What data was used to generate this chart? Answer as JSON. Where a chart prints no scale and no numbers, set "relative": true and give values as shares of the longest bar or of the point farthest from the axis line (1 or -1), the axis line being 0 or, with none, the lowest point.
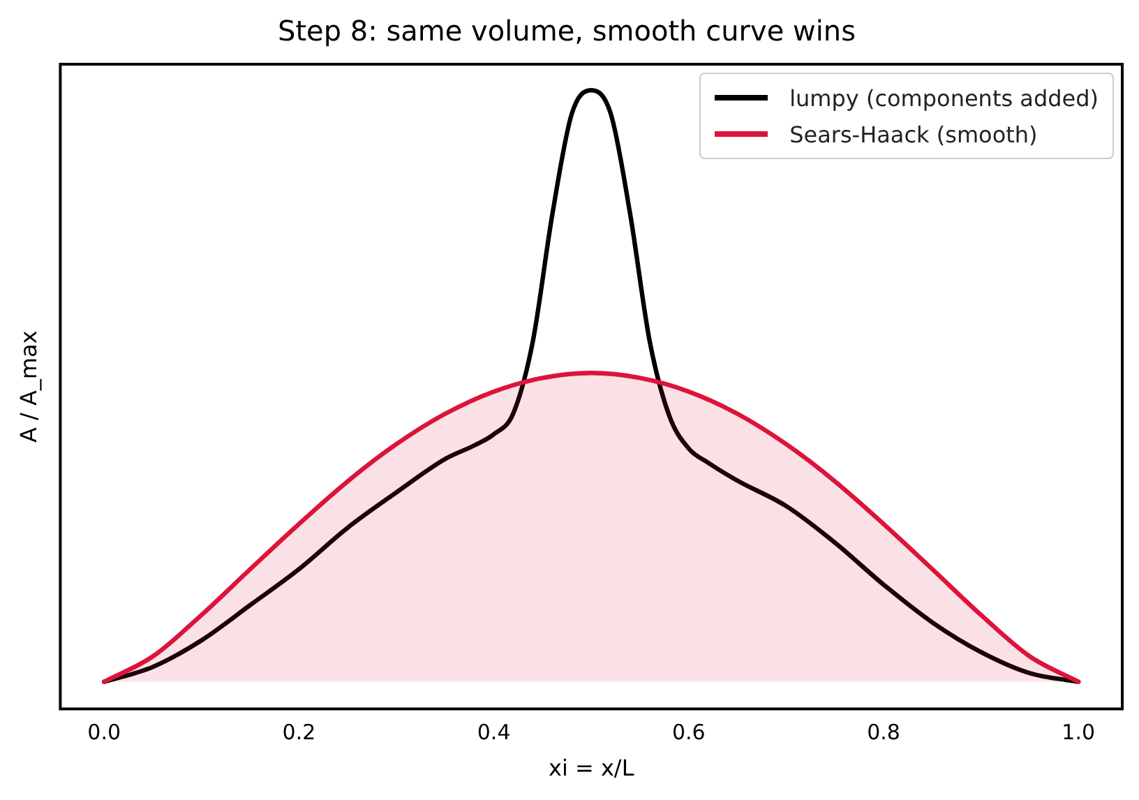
{
  "chart_data": {
    "type": "line",
    "title": "Step 8: same volume, smooth curve wins",
    "xlabel": "xi = x/L",
    "ylabel": "A / A_max",
    "relative": true,
    "xlim": [
      -0.045,
      1.045
    ],
    "xticks": [
      {
        "value": 0,
        "label": "0.0"
      },
      {
        "value": 0.2,
        "label": "0.2"
      },
      {
        "value": 0.4,
        "label": "0.4"
      },
      {
        "value": 0.6,
        "label": "0.6"
      },
      {
        "value": 0.8,
        "label": "0.8"
      },
      {
        "value": 1,
        "label": "1.0"
      }
    ],
    "grid": false,
    "legend": "top right",
    "marker": "none",
    "line_style": "solid",
    "series": [
      {
        "name": "lumpy (components added)",
        "color": "#000000",
        "x": [
          0,
          0.05,
          0.1,
          0.15,
          0.2,
          0.25,
          0.3,
          0.35,
          0.38,
          0.4,
          0.42,
          0.44,
          0.46,
          0.48,
          0.5,
          0.52,
          0.54,
          0.56,
          0.58,
          0.6,
          0.62,
          0.65,
          0.7,
          0.75,
          0.8,
          0.85,
          0.9,
          0.95,
          1
        ],
        "values": [
          0.044,
          0.068,
          0.111,
          0.168,
          0.226,
          0.293,
          0.35,
          0.404,
          0.426,
          0.444,
          0.478,
          0.594,
          0.799,
          0.962,
          1,
          0.962,
          0.799,
          0.594,
          0.474,
          0.421,
          0.398,
          0.369,
          0.328,
          0.269,
          0.201,
          0.14,
          0.092,
          0.058,
          0.044
        ]
      },
      {
        "name": "Sears-Haack (smooth)",
        "type": "area",
        "color": "#dc143c",
        "x": [
          0,
          0.05,
          0.1,
          0.15,
          0.2,
          0.25,
          0.3,
          0.35,
          0.4,
          0.45,
          0.5,
          0.55,
          0.6,
          0.65,
          0.7,
          0.75,
          0.8,
          0.85,
          0.9,
          0.95,
          1
        ],
        "values": [
          0.044,
          0.085,
          0.152,
          0.226,
          0.299,
          0.368,
          0.428,
          0.477,
          0.513,
          0.535,
          0.543,
          0.535,
          0.513,
          0.477,
          0.428,
          0.368,
          0.299,
          0.226,
          0.152,
          0.085,
          0.044
        ]
      }
    ]
  }
}
